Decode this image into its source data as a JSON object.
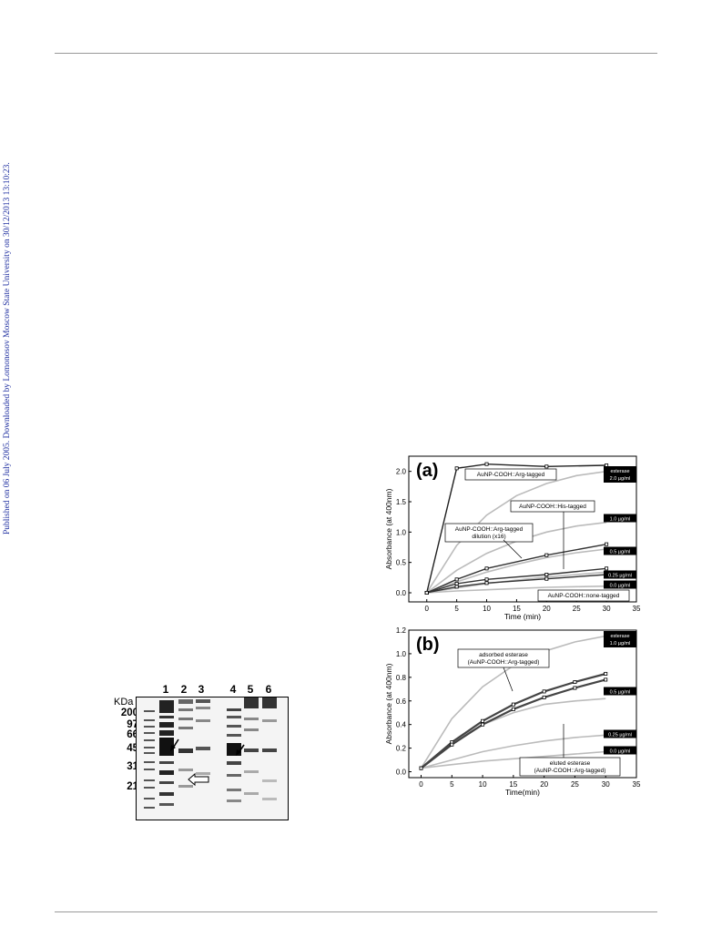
{
  "sidebar_notice": "Published on 06 July 2005. Downloaded by Lomonosov Moscow State University on 30/12/2013 13:10:23.",
  "gel": {
    "unit_label": "KDa",
    "mw_markers": [
      "200",
      "97",
      "66",
      "45",
      "31",
      "21"
    ],
    "lanes": [
      "1",
      "2",
      "3",
      "4",
      "5",
      "6"
    ]
  },
  "chart_data": [
    {
      "type": "line",
      "panel_label": "(a)",
      "xlabel": "Time (min)",
      "ylabel": "Absorbance (at 400nm)",
      "xlim": [
        -3,
        35
      ],
      "ylim": [
        -0.15,
        2.25
      ],
      "xticks": [
        0,
        5,
        10,
        15,
        20,
        25,
        30,
        35
      ],
      "yticks": [
        0.0,
        0.5,
        1.0,
        1.5,
        2.0
      ],
      "grid": false,
      "series": [
        {
          "name": "AuNP-COOH::Arg-tagged",
          "x": [
            0,
            5,
            10,
            20,
            30
          ],
          "y": [
            0.0,
            2.05,
            2.12,
            2.08,
            2.1
          ],
          "color": "#222222"
        },
        {
          "name": "AuNP-COOH::Arg-tagged dilution (x16)",
          "x": [
            0,
            5,
            10,
            20,
            30
          ],
          "y": [
            0.0,
            0.22,
            0.4,
            0.62,
            0.8
          ],
          "color": "#333333"
        },
        {
          "name": "AuNP-COOH::His-tagged",
          "x": [
            0,
            5,
            10,
            20,
            30
          ],
          "y": [
            0.0,
            0.15,
            0.22,
            0.3,
            0.4
          ],
          "color": "#333333"
        },
        {
          "name": "AuNP-COOH::none-tagged",
          "x": [
            0,
            5,
            10,
            20,
            30
          ],
          "y": [
            0.0,
            0.1,
            0.16,
            0.23,
            0.3
          ],
          "color": "#333333"
        }
      ],
      "standards": [
        {
          "label": "esterase 2.0 µg/ml",
          "x": [
            0,
            5,
            10,
            15,
            20,
            25,
            30
          ],
          "y": [
            0.0,
            0.78,
            1.28,
            1.6,
            1.8,
            1.93,
            2.0
          ]
        },
        {
          "label": "1.0 µg/ml",
          "x": [
            0,
            5,
            10,
            15,
            20,
            25,
            30
          ],
          "y": [
            0.0,
            0.37,
            0.65,
            0.85,
            1.0,
            1.1,
            1.16
          ]
        },
        {
          "label": "0.5 µg/ml",
          "x": [
            0,
            5,
            10,
            15,
            20,
            25,
            30
          ],
          "y": [
            0.0,
            0.18,
            0.34,
            0.47,
            0.58,
            0.66,
            0.72
          ]
        },
        {
          "label": "0.25 µg/ml",
          "x": [
            0,
            5,
            10,
            15,
            20,
            25,
            30
          ],
          "y": [
            0.0,
            0.08,
            0.15,
            0.21,
            0.26,
            0.3,
            0.34
          ]
        },
        {
          "label": "0.0 µg/ml",
          "x": [
            0,
            5,
            10,
            15,
            20,
            25,
            30
          ],
          "y": [
            0.0,
            0.03,
            0.05,
            0.07,
            0.09,
            0.1,
            0.11
          ]
        }
      ],
      "annotations": [
        "AuNP-COOH::Arg-tagged",
        "AuNP-COOH::His-tagged",
        "AuNP-COOH::Arg-tagged",
        "dilution (x16)",
        "AuNP-COOH::none-tagged"
      ]
    },
    {
      "type": "line",
      "panel_label": "(b)",
      "xlabel": "Time(min)",
      "ylabel": "Absorbance (at 400nm)",
      "xlim": [
        -2,
        35
      ],
      "ylim": [
        -0.05,
        1.2
      ],
      "xticks": [
        0,
        5,
        10,
        15,
        20,
        25,
        30,
        35
      ],
      "yticks": [
        0.0,
        0.2,
        0.4,
        0.6,
        0.8,
        1.0,
        1.2
      ],
      "grid": false,
      "series": [
        {
          "name": "adsorbed esterase (AuNP-COOH::Arg-tagged)",
          "x": [
            0,
            5,
            10,
            15,
            20,
            25,
            30
          ],
          "y": [
            0.03,
            0.25,
            0.43,
            0.57,
            0.68,
            0.76,
            0.83
          ],
          "color": "#444444"
        },
        {
          "name": "eluted esterase (AuNP-COOH::Arg-tagged)",
          "x": [
            0,
            5,
            10,
            15,
            20,
            25,
            30
          ],
          "y": [
            0.03,
            0.23,
            0.4,
            0.53,
            0.63,
            0.71,
            0.78
          ],
          "color": "#444444"
        }
      ],
      "standards": [
        {
          "label": "esterase 1.0 µg/ml",
          "x": [
            0,
            5,
            10,
            15,
            20,
            25,
            30
          ],
          "y": [
            0.03,
            0.45,
            0.72,
            0.9,
            1.02,
            1.1,
            1.15
          ]
        },
        {
          "label": "0.5 µg/ml",
          "x": [
            0,
            5,
            10,
            15,
            20,
            25,
            30
          ],
          "y": [
            0.03,
            0.25,
            0.4,
            0.5,
            0.57,
            0.6,
            0.62
          ]
        },
        {
          "label": "0.25 µg/ml",
          "x": [
            0,
            5,
            10,
            15,
            20,
            25,
            30
          ],
          "y": [
            0.03,
            0.1,
            0.17,
            0.22,
            0.26,
            0.29,
            0.31
          ]
        },
        {
          "label": "0.0 µg/ml",
          "x": [
            0,
            5,
            10,
            15,
            20,
            25,
            30
          ],
          "y": [
            0.03,
            0.06,
            0.09,
            0.11,
            0.13,
            0.15,
            0.17
          ]
        }
      ],
      "annotations": [
        "adsorbed esterase",
        "(AuNP-COOH::Arg-tagged)",
        "eluted esterase",
        "(AuNP-COOH::Arg-tagged)"
      ]
    }
  ]
}
